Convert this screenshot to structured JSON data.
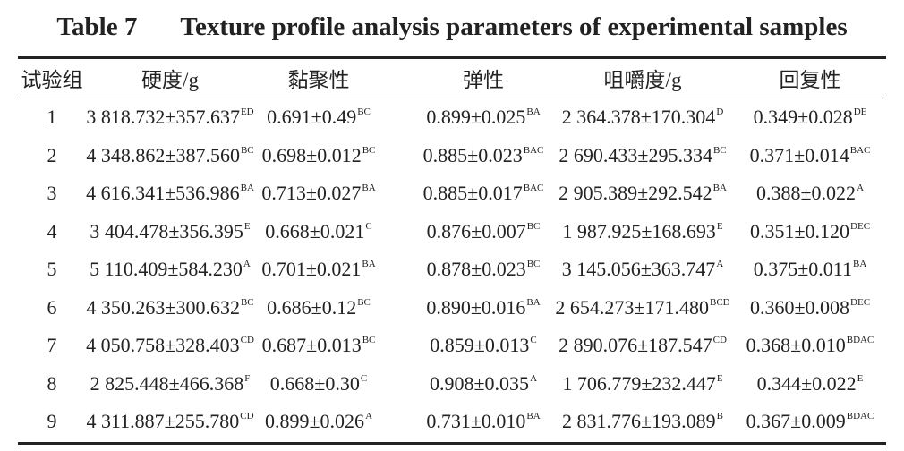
{
  "header": {
    "label": "Table 7",
    "title": "Texture profile analysis parameters of experimental samples"
  },
  "table": {
    "columns": [
      "试验组",
      "硬度/g",
      "黏聚性",
      "弹性",
      "咀嚼度/g",
      "回复性"
    ],
    "rows": [
      [
        "1",
        {
          "value": "3 818.732±357.637",
          "sup": "ED"
        },
        {
          "value": "0.691±0.49",
          "sup": "BC"
        },
        {
          "value": "0.899±0.025",
          "sup": "BA"
        },
        {
          "value": "2 364.378±170.304",
          "sup": "D"
        },
        {
          "value": "0.349±0.028",
          "sup": "DE"
        }
      ],
      [
        "2",
        {
          "value": "4 348.862±387.560",
          "sup": "BC"
        },
        {
          "value": "0.698±0.012",
          "sup": "BC"
        },
        {
          "value": "0.885±0.023",
          "sup": "BAC"
        },
        {
          "value": "2 690.433±295.334",
          "sup": "BC"
        },
        {
          "value": "0.371±0.014",
          "sup": "BAC"
        }
      ],
      [
        "3",
        {
          "value": "4 616.341±536.986",
          "sup": "BA"
        },
        {
          "value": "0.713±0.027",
          "sup": "BA"
        },
        {
          "value": "0.885±0.017",
          "sup": "BAC"
        },
        {
          "value": "2 905.389±292.542",
          "sup": "BA"
        },
        {
          "value": "0.388±0.022",
          "sup": "A"
        }
      ],
      [
        "4",
        {
          "value": "3 404.478±356.395",
          "sup": "E"
        },
        {
          "value": "0.668±0.021",
          "sup": "C"
        },
        {
          "value": "0.876±0.007",
          "sup": "BC"
        },
        {
          "value": "1 987.925±168.693",
          "sup": "E"
        },
        {
          "value": "0.351±0.120",
          "sup": "DEC"
        }
      ],
      [
        "5",
        {
          "value": "5 110.409±584.230",
          "sup": "A"
        },
        {
          "value": "0.701±0.021",
          "sup": "BA"
        },
        {
          "value": "0.878±0.023",
          "sup": "BC"
        },
        {
          "value": "3 145.056±363.747",
          "sup": "A"
        },
        {
          "value": "0.375±0.011",
          "sup": "BA"
        }
      ],
      [
        "6",
        {
          "value": "4 350.263±300.632",
          "sup": "BC"
        },
        {
          "value": "0.686±0.12",
          "sup": "BC"
        },
        {
          "value": "0.890±0.016",
          "sup": "BA"
        },
        {
          "value": "2 654.273±171.480",
          "sup": "BCD"
        },
        {
          "value": "0.360±0.008",
          "sup": "DEC"
        }
      ],
      [
        "7",
        {
          "value": "4 050.758±328.403",
          "sup": "CD"
        },
        {
          "value": "0.687±0.013",
          "sup": "BC"
        },
        {
          "value": "0.859±0.013",
          "sup": "C"
        },
        {
          "value": "2 890.076±187.547",
          "sup": "CD"
        },
        {
          "value": "0.368±0.010",
          "sup": "BDAC"
        }
      ],
      [
        "8",
        {
          "value": "2 825.448±466.368",
          "sup": "F"
        },
        {
          "value": "0.668±0.30",
          "sup": "C"
        },
        {
          "value": "0.908±0.035",
          "sup": "A"
        },
        {
          "value": "1 706.779±232.447",
          "sup": "E"
        },
        {
          "value": "0.344±0.022",
          "sup": "E"
        }
      ],
      [
        "9",
        {
          "value": "4 311.887±255.780",
          "sup": "CD"
        },
        {
          "value": "0.899±0.026",
          "sup": "A"
        },
        {
          "value": "0.731±0.010",
          "sup": "BA"
        },
        {
          "value": "2 831.776±193.089",
          "sup": "B"
        },
        {
          "value": "0.367±0.009",
          "sup": "BDAC"
        }
      ]
    ]
  }
}
